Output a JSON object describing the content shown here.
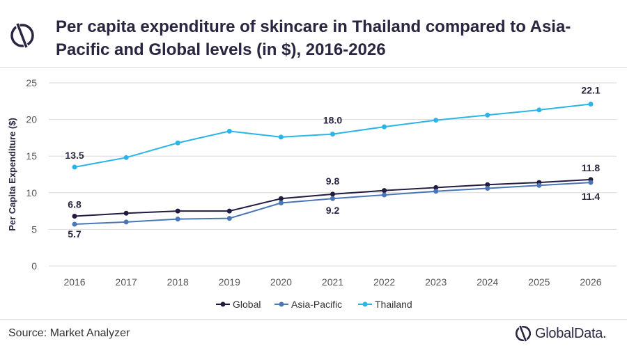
{
  "header": {
    "title": "Per capita expenditure of skincare in Thailand compared to Asia-Pacific and Global levels (in $), 2016-2026",
    "logo_icon": "globaldata-mark-icon"
  },
  "footer": {
    "source": "Source: Market Analyzer",
    "brand": "GlobalData."
  },
  "colors": {
    "title": "#2a2540",
    "global": "#221a3f",
    "asia_pacific": "#4a76b8",
    "thailand": "#29b5e8",
    "grid": "#d9d9d9"
  },
  "chart_data": {
    "type": "line",
    "x": [
      2016,
      2017,
      2018,
      2019,
      2020,
      2021,
      2022,
      2023,
      2024,
      2025,
      2026
    ],
    "ylabel": "Per Capita Expenditure ($)",
    "ylim": [
      0,
      25
    ],
    "yticks": [
      0,
      5,
      10,
      15,
      20,
      25
    ],
    "grid": true,
    "legend": "bottom",
    "series": [
      {
        "name": "Global",
        "color": "#221a3f",
        "values": [
          6.8,
          7.2,
          7.5,
          7.5,
          9.2,
          9.8,
          10.3,
          10.7,
          11.1,
          11.4,
          11.8
        ],
        "labels": [
          {
            "index": 0,
            "text": "6.8"
          },
          {
            "index": 5,
            "text": "9.8"
          },
          {
            "index": 10,
            "text": "11.8"
          }
        ]
      },
      {
        "name": "Asia-Pacific",
        "color": "#4a76b8",
        "values": [
          5.7,
          6.0,
          6.4,
          6.5,
          8.6,
          9.2,
          9.7,
          10.2,
          10.6,
          11.0,
          11.4
        ],
        "labels": [
          {
            "index": 0,
            "text": "5.7"
          },
          {
            "index": 5,
            "text": "9.2"
          },
          {
            "index": 10,
            "text": "11.4"
          }
        ]
      },
      {
        "name": "Thailand",
        "color": "#29b5e8",
        "values": [
          13.5,
          14.8,
          16.8,
          18.4,
          17.6,
          18.0,
          19.0,
          19.9,
          20.6,
          21.3,
          22.1
        ],
        "labels": [
          {
            "index": 0,
            "text": "13.5"
          },
          {
            "index": 5,
            "text": "18.0"
          },
          {
            "index": 10,
            "text": "22.1"
          }
        ]
      }
    ]
  }
}
